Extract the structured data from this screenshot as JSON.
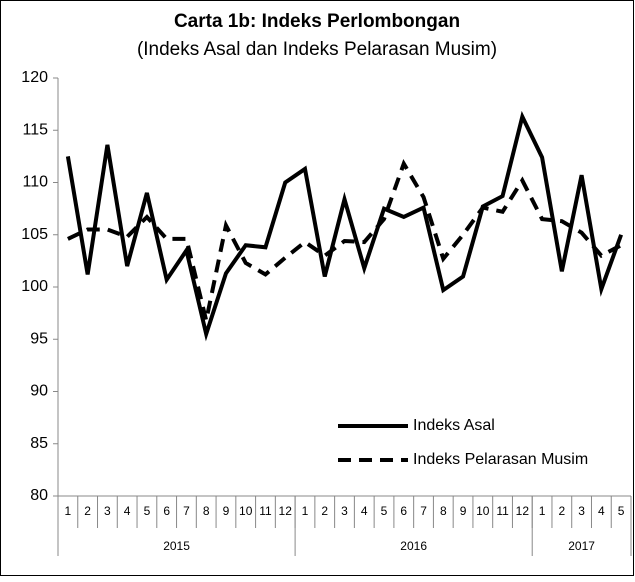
{
  "chart_data": {
    "type": "line",
    "title": "Carta 1b: Indeks Perlombongan",
    "subtitle": "(Indeks Asal dan Indeks Pelarasan Musim)",
    "categories": [
      "1",
      "2",
      "3",
      "4",
      "5",
      "6",
      "7",
      "8",
      "9",
      "10",
      "11",
      "12",
      "1",
      "2",
      "3",
      "4",
      "5",
      "6",
      "7",
      "8",
      "9",
      "10",
      "11",
      "12",
      "1",
      "2",
      "3",
      "4",
      "5"
    ],
    "x_groups": [
      {
        "label": "2015",
        "size": 12
      },
      {
        "label": "2016",
        "size": 12
      },
      {
        "label": "2017",
        "size": 5
      }
    ],
    "series": [
      {
        "name": "Indeks Asal",
        "color": "#000000",
        "dash": false,
        "values": [
          112.5,
          101.2,
          113.6,
          102,
          109,
          100.7,
          103.5,
          95.5,
          101.3,
          104,
          103.8,
          110,
          111.3,
          101,
          108.4,
          101.8,
          107.5,
          106.7,
          107.6,
          99.7,
          101,
          107.7,
          108.7,
          116.3,
          112.4,
          101.5,
          110.7,
          99.8,
          105
        ]
      },
      {
        "name": "Indeks Pelarasan Musim",
        "color": "#000000",
        "dash": true,
        "values": [
          104.6,
          105.5,
          105.5,
          104.8,
          106.7,
          104.6,
          104.6,
          96.8,
          105.9,
          102.3,
          101.2,
          102.8,
          104.3,
          103,
          104.4,
          104.3,
          106.5,
          111.8,
          108.6,
          102.7,
          105,
          107.6,
          107.2,
          110.2,
          106.5,
          106.3,
          105.2,
          103,
          104
        ]
      }
    ],
    "ylim": [
      80,
      120
    ],
    "yticks": [
      80,
      85,
      90,
      95,
      100,
      105,
      110,
      115,
      120
    ],
    "grid": false,
    "legend": "lower-right"
  }
}
